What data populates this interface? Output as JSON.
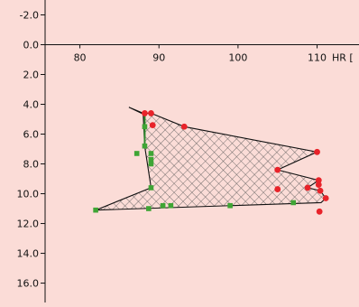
{
  "chart_data": {
    "type": "scatter",
    "title": "",
    "xlabel": "HR [",
    "ylabel": "",
    "x_ticks": [
      80,
      90,
      100,
      110
    ],
    "x_tick_labels": [
      "80",
      "90",
      "100",
      "110"
    ],
    "y_ticks": [
      -2.0,
      0.0,
      2.0,
      4.0,
      6.0,
      8.0,
      10.0,
      12.0,
      14.0,
      16.0
    ],
    "y_tick_labels": [
      "-2.0",
      "0.0",
      "2.0",
      "4.0",
      "6.0",
      "8.0",
      "10.0",
      "12.0",
      "14.0",
      "16.0"
    ],
    "xlim": [
      75.6,
      115.3
    ],
    "ylim": [
      -3.0,
      17.3
    ],
    "y_inverted": true,
    "grid": false,
    "background_color": "#fbdcd7",
    "outline": {
      "name": "",
      "color": "#111111",
      "fill_pattern": "crosshatch",
      "points": [
        [
          87.8,
          4.6
        ],
        [
          88.2,
          4.6
        ],
        [
          89.0,
          4.6
        ],
        [
          93.2,
          5.5
        ],
        [
          110.0,
          7.2
        ],
        [
          105.0,
          8.4
        ],
        [
          110.2,
          9.1
        ],
        [
          108.8,
          9.6
        ],
        [
          110.4,
          9.8
        ],
        [
          111.1,
          10.3
        ],
        [
          110.5,
          10.6
        ],
        [
          82.0,
          11.1
        ],
        [
          89.0,
          9.6
        ],
        [
          88.2,
          6.8
        ],
        [
          88.0,
          4.6
        ],
        [
          86.2,
          4.2
        ],
        [
          87.8,
          4.6
        ]
      ]
    },
    "series": [
      {
        "name": "",
        "color": "#e8232a",
        "points": [
          [
            88.2,
            4.6
          ],
          [
            89.0,
            4.6
          ],
          [
            89.2,
            5.4
          ],
          [
            93.2,
            5.5
          ],
          [
            110.0,
            7.2
          ],
          [
            105.0,
            8.4
          ],
          [
            110.2,
            9.1
          ],
          [
            110.2,
            9.4
          ],
          [
            108.8,
            9.6
          ],
          [
            105.0,
            9.7
          ],
          [
            110.4,
            9.8
          ],
          [
            111.1,
            10.3
          ],
          [
            110.3,
            11.2
          ]
        ]
      },
      {
        "name": "",
        "color": "#3fa535",
        "points": [
          [
            88.2,
            5.5
          ],
          [
            88.2,
            6.8
          ],
          [
            87.2,
            7.3
          ],
          [
            89.0,
            7.3
          ],
          [
            89.0,
            7.7
          ],
          [
            89.0,
            8.0
          ],
          [
            89.0,
            9.6
          ],
          [
            82.0,
            11.1
          ],
          [
            88.7,
            11.0
          ],
          [
            90.5,
            10.8
          ],
          [
            91.5,
            10.8
          ],
          [
            99.0,
            10.8
          ],
          [
            107.0,
            10.6
          ]
        ]
      }
    ],
    "green_stem": [
      [
        88.2,
        4.6
      ],
      [
        88.2,
        6.8
      ]
    ]
  }
}
